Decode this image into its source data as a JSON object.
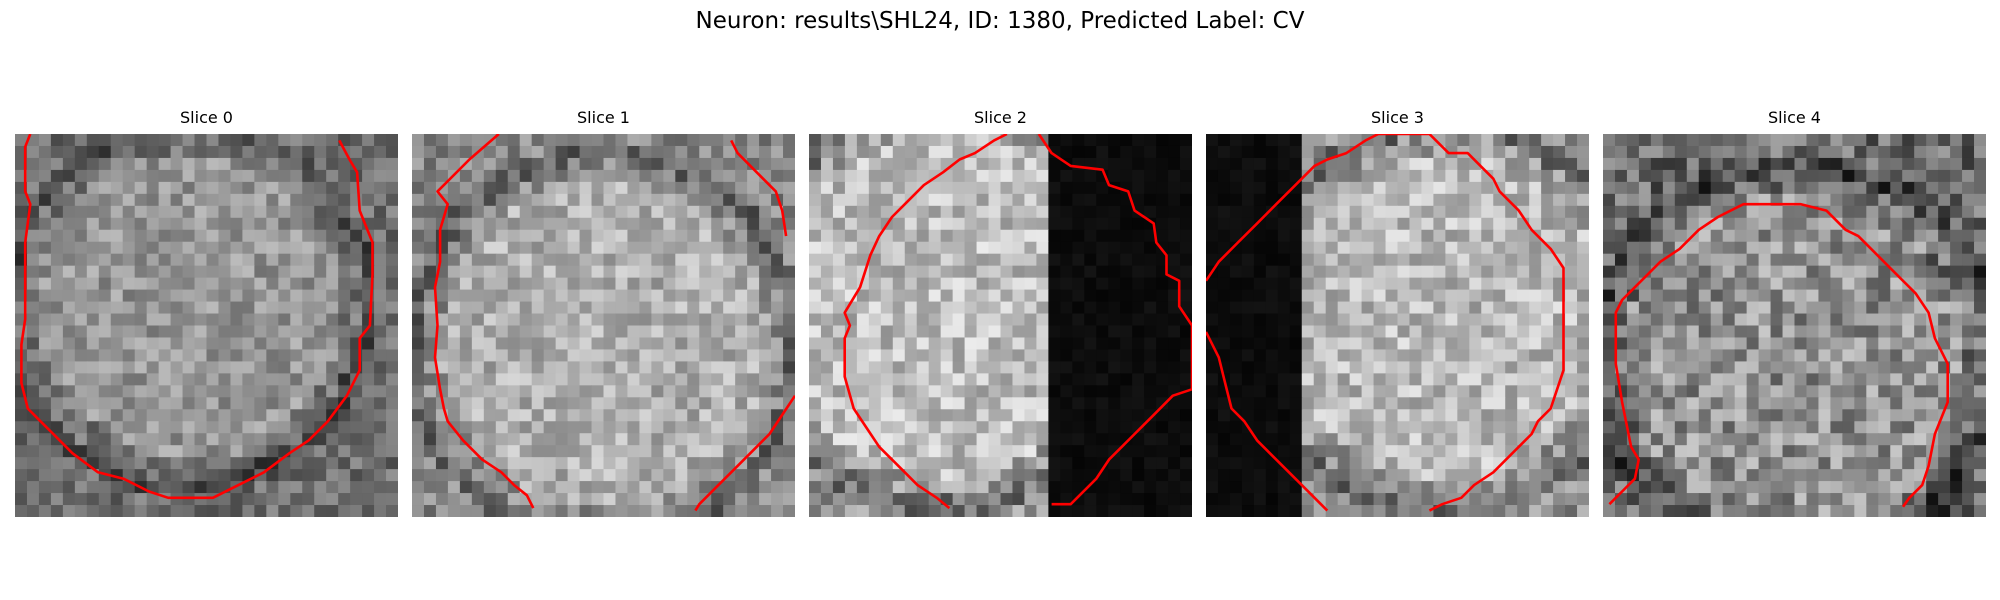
{
  "figure": {
    "title": "Neuron: results\\SHL24, ID: 1380, Predicted Label: CV"
  },
  "overlay_color": "#ff0000",
  "panels": [
    {
      "title": "Slice 0"
    },
    {
      "title": "Slice 1"
    },
    {
      "title": "Slice 2"
    },
    {
      "title": "Slice 3"
    },
    {
      "title": "Slice 4"
    }
  ]
}
